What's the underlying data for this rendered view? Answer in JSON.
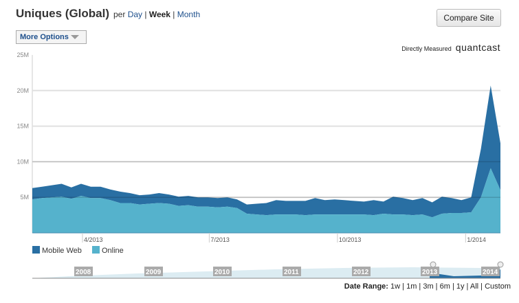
{
  "header": {
    "title": "Uniques (Global)",
    "per": "per",
    "periods": [
      "Day",
      "Week",
      "Month"
    ],
    "selected_period": "Week",
    "compare_button": "Compare Site",
    "more_options": "More Options",
    "measured": "Directly Measured",
    "logo": "quantcast"
  },
  "colors": {
    "mobile_web": "#296fa3",
    "online": "#55b2cc",
    "grid": "#e0e0e0"
  },
  "navigator": {
    "years": [
      "2008",
      "2009",
      "2010",
      "2011",
      "2012",
      "2013",
      "2014"
    ]
  },
  "date_range": {
    "label": "Date Range:",
    "options": [
      "1w",
      "1m",
      "3m",
      "6m",
      "1y",
      "All",
      "Custom"
    ]
  },
  "chart_data": {
    "type": "area",
    "stacked": true,
    "x": [
      "2013-02-24",
      "2013-03-03",
      "2013-03-10",
      "2013-03-17",
      "2013-03-24",
      "2013-03-31",
      "2013-04-07",
      "2013-04-14",
      "2013-04-21",
      "2013-04-28",
      "2013-05-05",
      "2013-05-12",
      "2013-05-19",
      "2013-05-26",
      "2013-06-02",
      "2013-06-09",
      "2013-06-16",
      "2013-06-23",
      "2013-06-30",
      "2013-07-07",
      "2013-07-14",
      "2013-07-21",
      "2013-07-28",
      "2013-08-04",
      "2013-08-11",
      "2013-08-18",
      "2013-08-25",
      "2013-09-01",
      "2013-09-08",
      "2013-09-15",
      "2013-09-22",
      "2013-09-29",
      "2013-10-06",
      "2013-10-13",
      "2013-10-20",
      "2013-10-27",
      "2013-11-03",
      "2013-11-10",
      "2013-11-17",
      "2013-11-24",
      "2013-12-01",
      "2013-12-08",
      "2013-12-15",
      "2013-12-22",
      "2013-12-29",
      "2014-01-05",
      "2014-01-12",
      "2014-01-19",
      "2014-01-26"
    ],
    "series": [
      {
        "name": "Online",
        "values": [
          4.7,
          4.9,
          5.0,
          5.1,
          4.8,
          5.2,
          4.9,
          4.9,
          4.6,
          4.2,
          4.2,
          4.0,
          4.1,
          4.2,
          4.1,
          3.8,
          3.9,
          3.7,
          3.7,
          3.6,
          3.7,
          3.5,
          2.7,
          2.6,
          2.5,
          2.6,
          2.6,
          2.6,
          2.5,
          2.6,
          2.6,
          2.6,
          2.6,
          2.6,
          2.6,
          2.5,
          2.7,
          2.6,
          2.6,
          2.5,
          2.6,
          2.2,
          2.7,
          2.8,
          2.8,
          2.9,
          5.0,
          9.1,
          6.0
        ]
      },
      {
        "name": "Mobile Web",
        "values": [
          1.6,
          1.6,
          1.7,
          1.8,
          1.6,
          1.7,
          1.6,
          1.6,
          1.5,
          1.6,
          1.4,
          1.3,
          1.3,
          1.4,
          1.3,
          1.3,
          1.3,
          1.3,
          1.3,
          1.3,
          1.3,
          1.2,
          1.3,
          1.5,
          1.7,
          2.0,
          1.9,
          1.9,
          2.0,
          2.3,
          2.0,
          2.1,
          2.0,
          1.9,
          1.8,
          2.1,
          1.7,
          2.5,
          2.3,
          2.1,
          2.3,
          2.1,
          2.4,
          2.1,
          1.8,
          2.1,
          6.8,
          11.6,
          6.6
        ]
      }
    ],
    "value_unit": "M",
    "ylim": [
      0,
      25
    ],
    "yticks": [
      "25M",
      "20M",
      "15M",
      "10M",
      "5M"
    ],
    "xticks": [
      {
        "date": "2013-04-01",
        "label": "4/2013"
      },
      {
        "date": "2013-07-01",
        "label": "7/2013"
      },
      {
        "date": "2013-10-01",
        "label": "10/2013"
      },
      {
        "date": "2014-01-01",
        "label": "1/2014"
      }
    ],
    "grid": true,
    "legend": "bottom-left"
  }
}
